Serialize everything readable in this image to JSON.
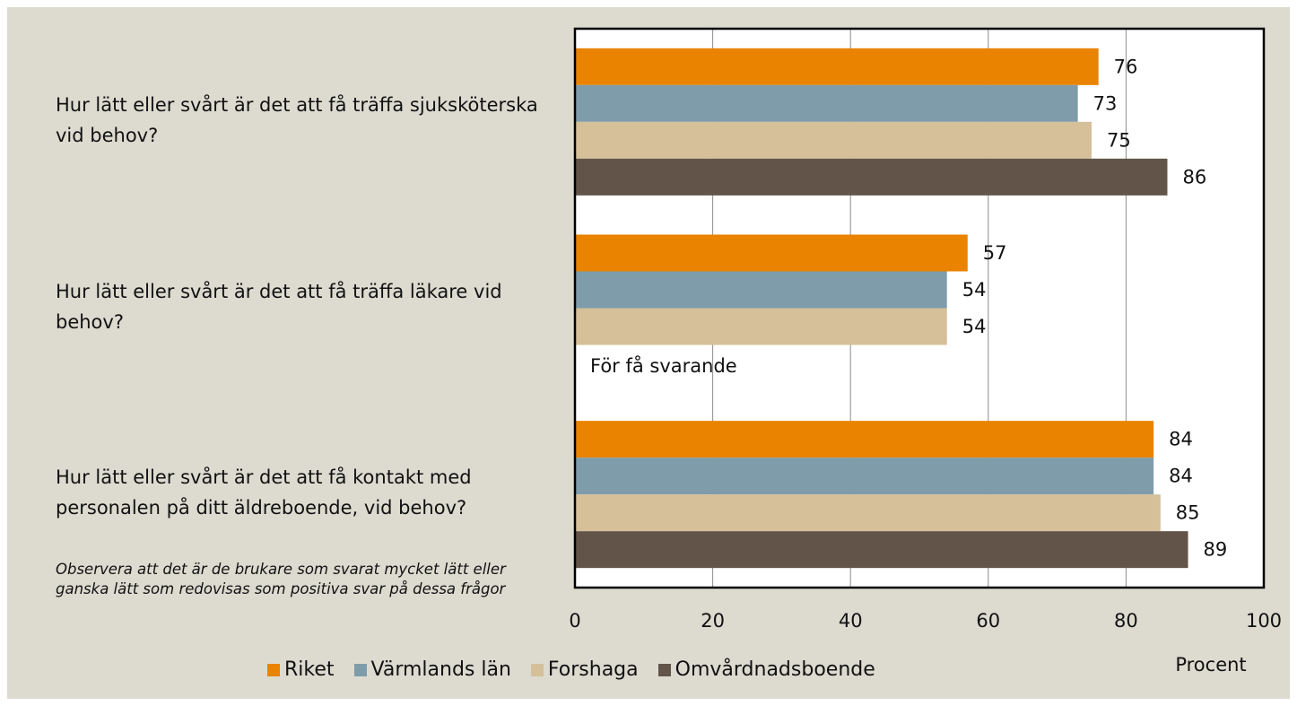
{
  "chart_data": {
    "type": "bar",
    "orientation": "horizontal",
    "categories": [
      "Hur lätt eller svårt är det att få träffa sjuksköterska vid behov?",
      "Hur lätt eller svårt är det att få träffa läkare vid behov?",
      "Hur lätt eller svårt är det att få kontakt med personalen på ditt äldreboende, vid behov?"
    ],
    "series": [
      {
        "name": "Riket",
        "color": "#e98300",
        "values": [
          76,
          57,
          84
        ]
      },
      {
        "name": "Värmlands län",
        "color": "#7f9cab",
        "values": [
          73,
          54,
          84
        ]
      },
      {
        "name": "Forshaga",
        "color": "#d5c09a",
        "values": [
          75,
          54,
          85
        ]
      },
      {
        "name": "Omvårdnadsboende",
        "color": "#625448",
        "values": [
          86,
          null,
          89
        ]
      }
    ],
    "xlim": [
      0,
      100
    ],
    "xticks": [
      0,
      20,
      40,
      60,
      80,
      100
    ],
    "grid": true,
    "xlabel": "Procent",
    "annotation": "För få svarande",
    "footnote": "Observera att det är de brukare som svarat mycket lätt eller ganska lätt som redovisas som positiva svar på dessa frågor",
    "legend": "bottom"
  }
}
